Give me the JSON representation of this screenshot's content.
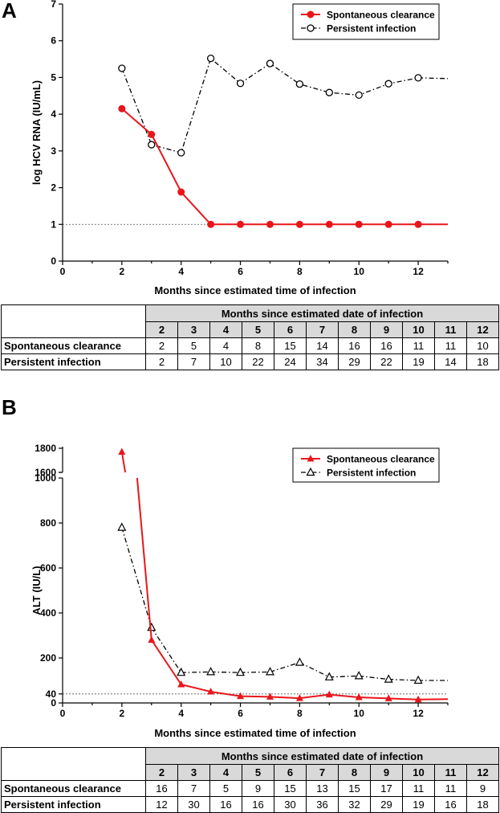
{
  "chart_data": [
    {
      "type": "line",
      "panel_label": "A",
      "xlabel": "Months since estimated time of infection",
      "ylabel": "log HCV RNA (IU/mL)",
      "xlim": [
        0,
        13
      ],
      "ylim": [
        0,
        7
      ],
      "x_ticks": [
        0,
        2,
        4,
        6,
        8,
        10,
        12
      ],
      "y_ticks": [
        0,
        1,
        2,
        3,
        4,
        5,
        6,
        7
      ],
      "reference_line": 1,
      "legend_position": "top-right",
      "series": [
        {
          "name": "Spontaneous clearance",
          "color": "#e8161b",
          "marker": "filled-circle",
          "line_style": "solid",
          "x": [
            2,
            3,
            4,
            5,
            6,
            7,
            8,
            9,
            10,
            11,
            12,
            13
          ],
          "values": [
            4.15,
            3.45,
            1.88,
            1.0,
            1.0,
            1.0,
            1.0,
            1.0,
            1.0,
            1.0,
            1.0,
            1.0
          ],
          "markers_at": [
            2,
            3,
            4,
            5,
            6,
            7,
            8,
            9,
            10,
            11,
            12
          ]
        },
        {
          "name": "Persistent infection",
          "color": "#000000",
          "marker": "open-circle",
          "line_style": "dash-dot",
          "x": [
            2,
            3,
            4,
            5,
            6,
            7,
            8,
            9,
            10,
            11,
            12,
            13
          ],
          "values": [
            5.25,
            3.17,
            2.95,
            5.52,
            4.84,
            5.38,
            4.82,
            4.59,
            4.52,
            4.83,
            4.99,
            4.97
          ],
          "markers_at": [
            2,
            3,
            4,
            5,
            6,
            7,
            8,
            9,
            10,
            11,
            12
          ]
        }
      ]
    },
    {
      "type": "line",
      "panel_label": "B",
      "xlabel": "Months since estimated time of infection",
      "ylabel": "ALT (IU/L)",
      "xlim": [
        0,
        13
      ],
      "ylim_lower": [
        0,
        1000
      ],
      "ylim_upper": [
        1600,
        1800
      ],
      "axis_break": [
        1000,
        1600
      ],
      "x_ticks": [
        0,
        2,
        4,
        6,
        8,
        10,
        12
      ],
      "y_ticks_lower": [
        0,
        40,
        200,
        400,
        600,
        800,
        1000
      ],
      "y_ticks_upper": [
        1600,
        1800
      ],
      "reference_line": 40,
      "legend_position": "top-right",
      "series": [
        {
          "name": "Spontaneous clearance",
          "color": "#e8161b",
          "marker": "filled-triangle",
          "line_style": "solid",
          "x": [
            2,
            3,
            4,
            5,
            6,
            7,
            8,
            9,
            10,
            11,
            12,
            13
          ],
          "values": [
            1770,
            280,
            82,
            50,
            30,
            27,
            21,
            37,
            25,
            20,
            15,
            17
          ],
          "markers_at": [
            2,
            3,
            4,
            5,
            6,
            7,
            8,
            9,
            10,
            11,
            12
          ]
        },
        {
          "name": "Persistent infection",
          "color": "#000000",
          "marker": "open-triangle",
          "line_style": "dash-dot",
          "x": [
            2,
            3,
            4,
            5,
            6,
            7,
            8,
            9,
            10,
            11,
            12,
            13
          ],
          "values": [
            780,
            335,
            135,
            138,
            135,
            138,
            180,
            115,
            120,
            105,
            100,
            100
          ],
          "markers_at": [
            2,
            3,
            4,
            5,
            6,
            7,
            8,
            9,
            10,
            11,
            12
          ]
        }
      ]
    }
  ],
  "tables": {
    "a": {
      "header": "Months since estimated date of infection",
      "months": [
        "2",
        "3",
        "4",
        "5",
        "6",
        "7",
        "8",
        "9",
        "10",
        "11",
        "12"
      ],
      "rows": [
        {
          "label": "Spontaneous clearance",
          "values": [
            "2",
            "5",
            "4",
            "8",
            "15",
            "14",
            "16",
            "16",
            "11",
            "11",
            "10"
          ]
        },
        {
          "label": "Persistent infection",
          "values": [
            "2",
            "7",
            "10",
            "22",
            "24",
            "34",
            "29",
            "22",
            "19",
            "14",
            "18"
          ]
        }
      ]
    },
    "b": {
      "header": "Months since estimated date of infection",
      "months": [
        "2",
        "3",
        "4",
        "5",
        "6",
        "7",
        "8",
        "9",
        "10",
        "11",
        "12"
      ],
      "rows": [
        {
          "label": "Spontaneous clearance",
          "values": [
            "16",
            "7",
            "5",
            "9",
            "15",
            "13",
            "15",
            "17",
            "11",
            "11",
            "9"
          ]
        },
        {
          "label": "Persistent infection",
          "values": [
            "12",
            "30",
            "16",
            "16",
            "30",
            "36",
            "32",
            "29",
            "19",
            "16",
            "18"
          ]
        }
      ]
    }
  }
}
